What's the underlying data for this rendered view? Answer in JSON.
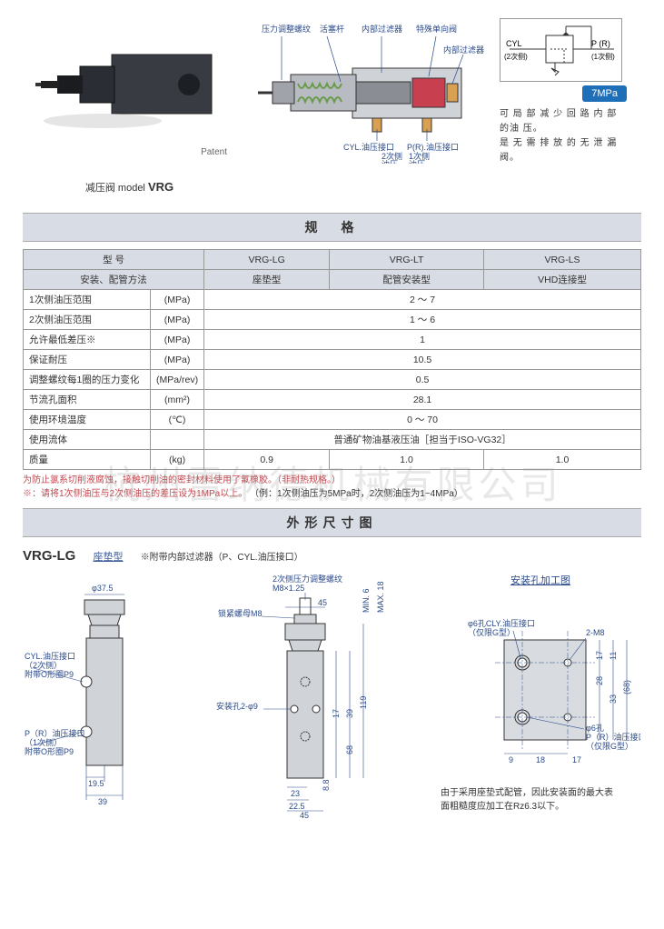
{
  "watermark": "杭州雷纳德机械有限公司",
  "top": {
    "patent_label": "Patent",
    "model_label_prefix": "减压阀 model",
    "model_name": "VRG",
    "cutaway_labels": {
      "l1": "压力调整螺纹",
      "l2": "活塞杆",
      "l3": "内部过滤器",
      "l4": "特殊单向阀",
      "l5": "内部过滤器",
      "l6": "CYL.油压接口",
      "l7": "P(R).油压接口",
      "l8_a": "2次侧",
      "l8_b": "油压",
      "l9_a": "1次侧",
      "l9_b": "油压"
    },
    "schematic": {
      "cyl": "CYL",
      "cyl_sub": "(2次侧)",
      "pr": "P (R)",
      "pr_sub": "(1次侧)"
    },
    "mpa_badge": "7MPa",
    "desc_line1": "可 局 部 减 少 回 路 内 部 的油 压。",
    "desc_line2": "是 无 需 排 放 的 无 泄 漏阀。"
  },
  "spec_title": "规　格",
  "spec_headers": {
    "model": "型 号",
    "install": "安装、配管方法",
    "c1": "VRG-LG",
    "c2": "VRG-LT",
    "c3": "VRG-LS",
    "i1": "座垫型",
    "i2": "配管安装型",
    "i3": "VHD连接型"
  },
  "spec_rows": [
    {
      "label": "1次侧油压范围",
      "unit": "(MPa)",
      "val": "2 ～ 7",
      "span": 3
    },
    {
      "label": "2次侧油压范围",
      "unit": "(MPa)",
      "val": "1 ～ 6",
      "span": 3
    },
    {
      "label": "允许最低差压※",
      "unit": "(MPa)",
      "val": "1",
      "span": 3
    },
    {
      "label": "保证耐压",
      "unit": "(MPa)",
      "val": "10.5",
      "span": 3
    },
    {
      "label": "调整螺纹每1圈的压力变化",
      "unit": "(MPa/rev)",
      "val": "0.5",
      "span": 3
    },
    {
      "label": "节流孔面积",
      "unit": "(mm²)",
      "val": "28.1",
      "span": 3
    },
    {
      "label": "使用环境温度",
      "unit": "(℃)",
      "val": "0 ～ 70",
      "span": 3
    },
    {
      "label": "使用流体",
      "unit": "",
      "val": "普通矿物油基液压油［担当于ISO-VG32］",
      "span": 3
    }
  ],
  "mass_row": {
    "label": "质量",
    "unit": "(kg)",
    "v1": "0.9",
    "v2": "1.0",
    "v3": "1.0"
  },
  "spec_note1": "为防止氯系切削液腐蚀，接触切削油的密封材料使用了氟橡胶。（非耐热规格。）",
  "spec_note2": "※：请将1次侧油压与2次侧油压的差压设为1MPa以上。",
  "spec_note2_ex": "（例：1次侧油压为5MPa时，2次侧油压为1~4MPa）",
  "dim_title": "外形尺寸图",
  "vrg_lg": {
    "title": "VRG-LG",
    "subtitle": "座垫型",
    "note": "※附带内部过滤器（P、CYL.油压接口）",
    "labels": {
      "phi37_5": "φ37.5",
      "cyl_port": "CYL.油压接口",
      "cyl_side": "（2次侧）",
      "oring1": "附带O形圈P9",
      "pr_port": "P（R）油压接口",
      "pr_side": "（1次侧）",
      "oring2": "附带O形圈P9",
      "d19_5": "19.5",
      "d39": "39",
      "top1": "2次侧压力调整螺纹",
      "top2": "M8×1.25",
      "locknut": "锁紧螺母M8",
      "d45": "45",
      "min_6": "MIN. 6",
      "max_18": "MAX. 18",
      "mount": "安装孔2-φ9",
      "d17": "17",
      "d39b": "39",
      "d68": "68",
      "d119": "119",
      "d23": "23",
      "d22_5": "22.5",
      "d45b": "45",
      "d8_8": "8.8",
      "mount_title": "安装孔加工图",
      "phi6cyl": "φ6孔CLY.油压接口",
      "g_only1": "（仅限G型）",
      "m8_2": "2-M8",
      "d9": "9",
      "d18": "18",
      "d17b": "17",
      "d17c": "17",
      "d28": "28",
      "d11": "11",
      "d33": "33",
      "d68b": "(68)",
      "phi6p": "φ6孔",
      "p_port": "P（R）油压接口",
      "g_only2": "（仅限G型）"
    }
  },
  "bottom_note1": "由于采用座垫式配管，因此安装面的最大表",
  "bottom_note2": "面粗糙度应加工在Rz6.3以下。",
  "colors": {
    "header_bg": "#d8dce4",
    "blue": "#2a4a8a",
    "badge": "#1e6fb8",
    "note_red": "#c4474f",
    "valve_body": "#3a3f44"
  }
}
